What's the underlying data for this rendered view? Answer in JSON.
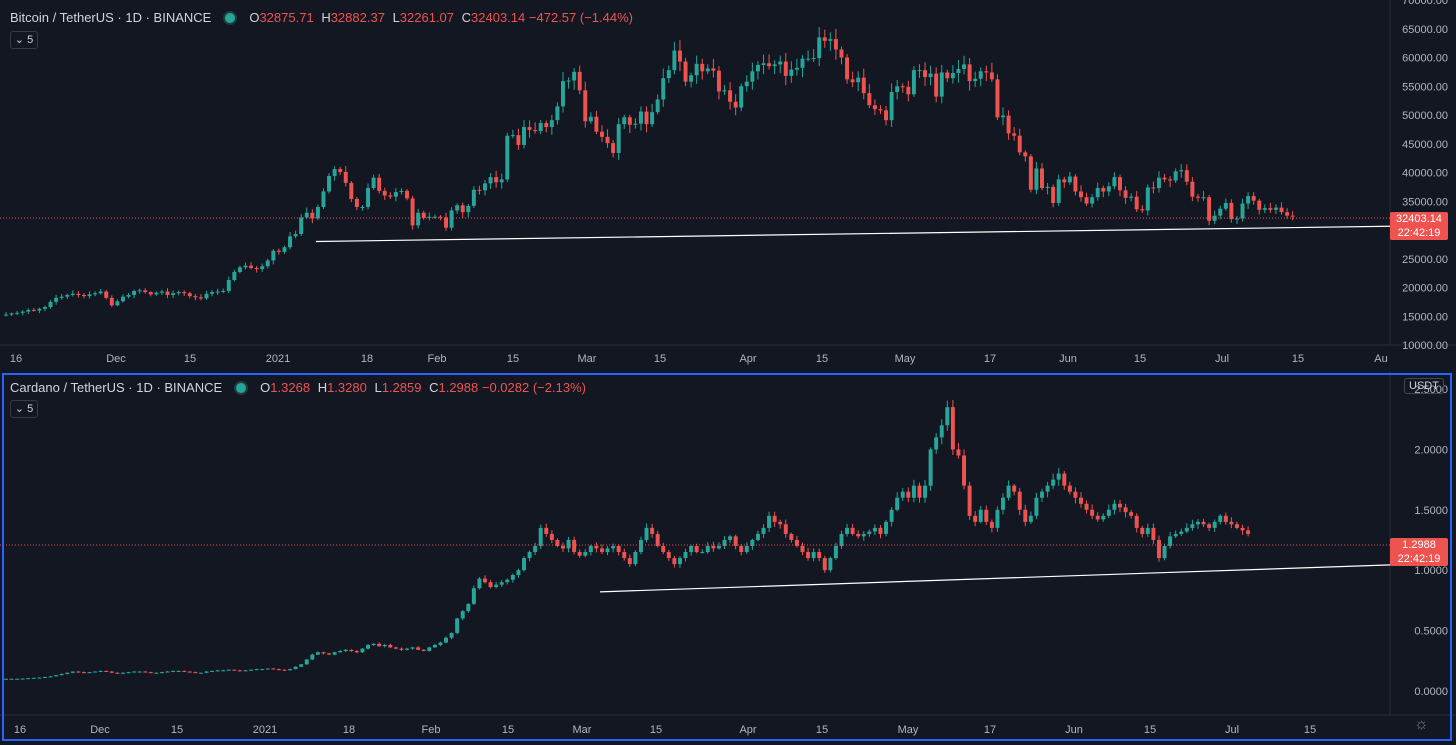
{
  "colors": {
    "background": "#131722",
    "up": "#26a69a",
    "down": "#ef5350",
    "grid": "#2a2e39",
    "axis": "#b2b5be",
    "trendline": "#ffffff",
    "price_line": "#ef5350",
    "active_pane": "#2962ff"
  },
  "time_axis": [
    "16",
    "Dec",
    "15",
    "2021",
    "18",
    "Feb",
    "15",
    "Mar",
    "15",
    "Apr",
    "15",
    "May",
    "17",
    "Jun",
    "15",
    "Jul",
    "15",
    "Au"
  ],
  "time_axis_bottom": [
    "16",
    "Dec",
    "15",
    "2021",
    "18",
    "Feb",
    "15",
    "Mar",
    "15",
    "Apr",
    "15",
    "May",
    "17",
    "Jun",
    "15",
    "Jul",
    "15"
  ],
  "panes": [
    {
      "symbol": "Bitcoin / TetherUS · 1D · BINANCE",
      "ohlc": {
        "o_label": "O",
        "o": "32875.71",
        "h_label": "H",
        "h": "32882.37",
        "l_label": "L",
        "l": "32261.07",
        "c_label": "C",
        "c": "32403.14",
        "change": "−472.57 (−1.44%)"
      },
      "collapse_label": "5",
      "last_price": "32403.14",
      "countdown": "22:42:19",
      "y_ticks": [
        "70000.00",
        "65000.00",
        "60000.00",
        "55000.00",
        "50000.00",
        "45000.00",
        "40000.00",
        "35000.00",
        "30000.00",
        "25000.00",
        "20000.00",
        "15000.00",
        "10000.00"
      ]
    },
    {
      "symbol": "Cardano / TetherUS · 1D · BINANCE",
      "ohlc": {
        "o_label": "O",
        "o": "1.3268",
        "h_label": "H",
        "h": "1.3280",
        "l_label": "L",
        "l": "1.2859",
        "c_label": "C",
        "c": "1.2988",
        "change": "−0.0282 (−2.13%)"
      },
      "collapse_label": "5",
      "unit": "USDT",
      "last_price": "1.2988",
      "countdown": "22:42:19",
      "y_ticks": [
        "2.5000",
        "2.0000",
        "1.5000",
        "1.0000",
        "0.5000",
        "0.0000"
      ]
    }
  ],
  "chart_data": [
    {
      "type": "candlestick",
      "title": "Bitcoin / TetherUS · 1D · BINANCE",
      "x_start": "2020-11-09",
      "x_end": "2021-07-09",
      "ylim": [
        10000,
        70000
      ],
      "closes": [
        15300,
        15500,
        15600,
        15800,
        16100,
        16000,
        16300,
        16600,
        17500,
        18200,
        18400,
        18700,
        18900,
        18700,
        18500,
        18800,
        19000,
        19300,
        18200,
        16900,
        17600,
        18400,
        18700,
        19400,
        19500,
        19200,
        18800,
        19100,
        19300,
        18700,
        19000,
        19200,
        19000,
        18500,
        18300,
        18100,
        18900,
        19200,
        19300,
        19400,
        21300,
        22700,
        23500,
        23800,
        23400,
        23200,
        23700,
        24700,
        26400,
        26200,
        27000,
        28900,
        29300,
        32200,
        33000,
        32000,
        34000,
        36700,
        39400,
        40600,
        40100,
        38200,
        35400,
        34000,
        34000,
        37300,
        39100,
        36800,
        36000,
        35800,
        36600,
        36800,
        35500,
        30800,
        33000,
        32100,
        32300,
        32300,
        32200,
        30400,
        33400,
        34300,
        33100,
        34200,
        37000,
        36900,
        38100,
        39200,
        38300,
        38800,
        46400,
        46500,
        44800,
        47900,
        47400,
        47200,
        48600,
        47900,
        49100,
        51500,
        55900,
        56000,
        57500,
        54300,
        48900,
        49700,
        47100,
        46200,
        45100,
        43400,
        48400,
        49600,
        48300,
        48500,
        50600,
        48400,
        50500,
        52700,
        56400,
        57800,
        61200,
        59300,
        55800,
        56900,
        58900,
        57600,
        58100,
        57700,
        54100,
        54300,
        52300,
        51300,
        55000,
        55800,
        57600,
        58700,
        59000,
        58500,
        58800,
        59300,
        56800,
        57900,
        58200,
        59800,
        59800,
        59900,
        63500,
        62900,
        63200,
        61400,
        60000,
        56200,
        55700,
        56500,
        53800,
        51700,
        51000,
        50800,
        49100,
        54000,
        55000,
        54900,
        53600,
        57800,
        57800,
        56600,
        57200,
        53200,
        57400,
        56400,
        57300,
        58000,
        58800,
        55900,
        56300,
        57600,
        57400,
        56200,
        49600,
        49900,
        46800,
        46400,
        43500,
        42800,
        37000,
        40700,
        37300,
        37500,
        34700,
        38800,
        38300,
        39300,
        36700,
        35700,
        34600,
        35700,
        37300,
        36700,
        37600,
        39200,
        36900,
        35600,
        35800,
        33600,
        33400,
        37400,
        37300,
        39100,
        38800,
        38600,
        40200,
        40400,
        38400,
        35800,
        35600,
        35700,
        31600,
        32500,
        33700,
        34700,
        31900,
        32000,
        34600,
        35900,
        35100,
        33500,
        33800,
        33500,
        33900,
        33100,
        32500,
        32400
      ],
      "trendline": [
        {
          "x": "2021-01-04",
          "y": 28000
        },
        {
          "x": "2021-07-19",
          "y": 30700
        }
      ]
    },
    {
      "type": "candlestick",
      "title": "Cardano / TetherUS · 1D · BINANCE",
      "x_start": "2020-11-09",
      "x_end": "2021-07-09",
      "ylim": [
        -0.2,
        2.6
      ],
      "closes": [
        0.1,
        0.1,
        0.1,
        0.102,
        0.105,
        0.108,
        0.11,
        0.115,
        0.12,
        0.13,
        0.14,
        0.15,
        0.16,
        0.155,
        0.15,
        0.155,
        0.16,
        0.165,
        0.16,
        0.15,
        0.145,
        0.15,
        0.155,
        0.16,
        0.16,
        0.155,
        0.15,
        0.15,
        0.155,
        0.16,
        0.165,
        0.165,
        0.16,
        0.155,
        0.15,
        0.15,
        0.16,
        0.165,
        0.17,
        0.17,
        0.175,
        0.17,
        0.165,
        0.17,
        0.175,
        0.18,
        0.18,
        0.185,
        0.18,
        0.175,
        0.17,
        0.18,
        0.2,
        0.22,
        0.26,
        0.3,
        0.32,
        0.31,
        0.3,
        0.32,
        0.33,
        0.34,
        0.33,
        0.32,
        0.35,
        0.38,
        0.39,
        0.37,
        0.38,
        0.36,
        0.35,
        0.34,
        0.35,
        0.36,
        0.34,
        0.33,
        0.36,
        0.38,
        0.4,
        0.44,
        0.48,
        0.6,
        0.66,
        0.72,
        0.85,
        0.93,
        0.9,
        0.86,
        0.88,
        0.9,
        0.92,
        0.96,
        1.0,
        1.1,
        1.15,
        1.2,
        1.35,
        1.3,
        1.25,
        1.2,
        1.18,
        1.25,
        1.15,
        1.12,
        1.15,
        1.2,
        1.18,
        1.15,
        1.18,
        1.2,
        1.15,
        1.1,
        1.05,
        1.15,
        1.25,
        1.35,
        1.3,
        1.2,
        1.15,
        1.1,
        1.05,
        1.1,
        1.15,
        1.2,
        1.15,
        1.15,
        1.2,
        1.18,
        1.2,
        1.25,
        1.28,
        1.2,
        1.15,
        1.2,
        1.25,
        1.3,
        1.35,
        1.45,
        1.4,
        1.38,
        1.3,
        1.25,
        1.2,
        1.15,
        1.1,
        1.15,
        1.1,
        1.0,
        1.1,
        1.2,
        1.3,
        1.35,
        1.3,
        1.28,
        1.3,
        1.32,
        1.35,
        1.3,
        1.4,
        1.5,
        1.6,
        1.65,
        1.6,
        1.7,
        1.6,
        1.7,
        2.0,
        2.1,
        2.2,
        2.35,
        2.0,
        1.95,
        1.7,
        1.45,
        1.4,
        1.5,
        1.4,
        1.35,
        1.5,
        1.6,
        1.7,
        1.65,
        1.5,
        1.4,
        1.45,
        1.6,
        1.65,
        1.7,
        1.75,
        1.8,
        1.7,
        1.65,
        1.6,
        1.55,
        1.5,
        1.45,
        1.42,
        1.45,
        1.5,
        1.55,
        1.52,
        1.48,
        1.45,
        1.35,
        1.3,
        1.35,
        1.25,
        1.1,
        1.2,
        1.28,
        1.3,
        1.32,
        1.35,
        1.38,
        1.4,
        1.38,
        1.35,
        1.4,
        1.45,
        1.4,
        1.38,
        1.35,
        1.33,
        1.3
      ],
      "trendline": [
        {
          "x": "2021-02-24",
          "y": 0.82
        },
        {
          "x": "2021-07-20",
          "y": 1.05
        }
      ]
    }
  ]
}
